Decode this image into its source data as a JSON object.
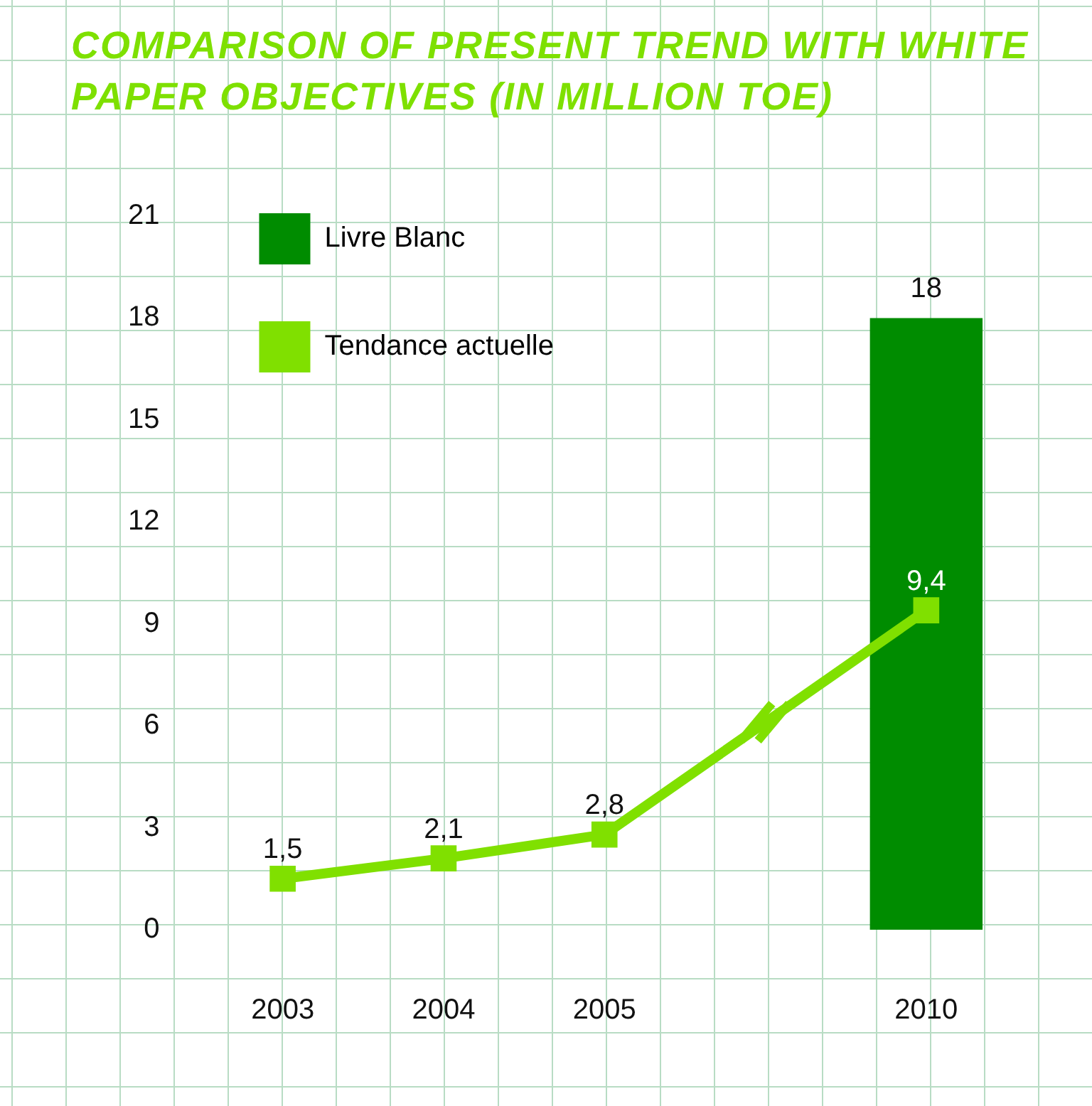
{
  "chart_data": {
    "type": "bar",
    "title": "COMPARISON OF PRESENT TREND WITH WHITE PAPER OBJECTIVES (IN MILLION TOE)",
    "categories": [
      "2003",
      "2004",
      "2005",
      null,
      "2010"
    ],
    "series": [
      {
        "name": "Livre Blanc",
        "color": "#008c00",
        "values": [
          null,
          null,
          null,
          null,
          18
        ],
        "value_labels": [
          null,
          null,
          null,
          null,
          "18"
        ]
      },
      {
        "type": "line",
        "name": "Tendance actuelle",
        "color": "#80e000",
        "values": [
          1.5,
          2.1,
          2.8,
          null,
          9.4
        ],
        "value_labels": [
          "1,5",
          "2,1",
          "2,8",
          null,
          "9,4"
        ]
      }
    ],
    "ylim": [
      0,
      21
    ],
    "yticks": [
      0,
      3,
      6,
      9,
      12,
      15,
      18,
      21
    ],
    "grid": false,
    "legend": "top left",
    "marker": "square",
    "line_style": "solid"
  }
}
